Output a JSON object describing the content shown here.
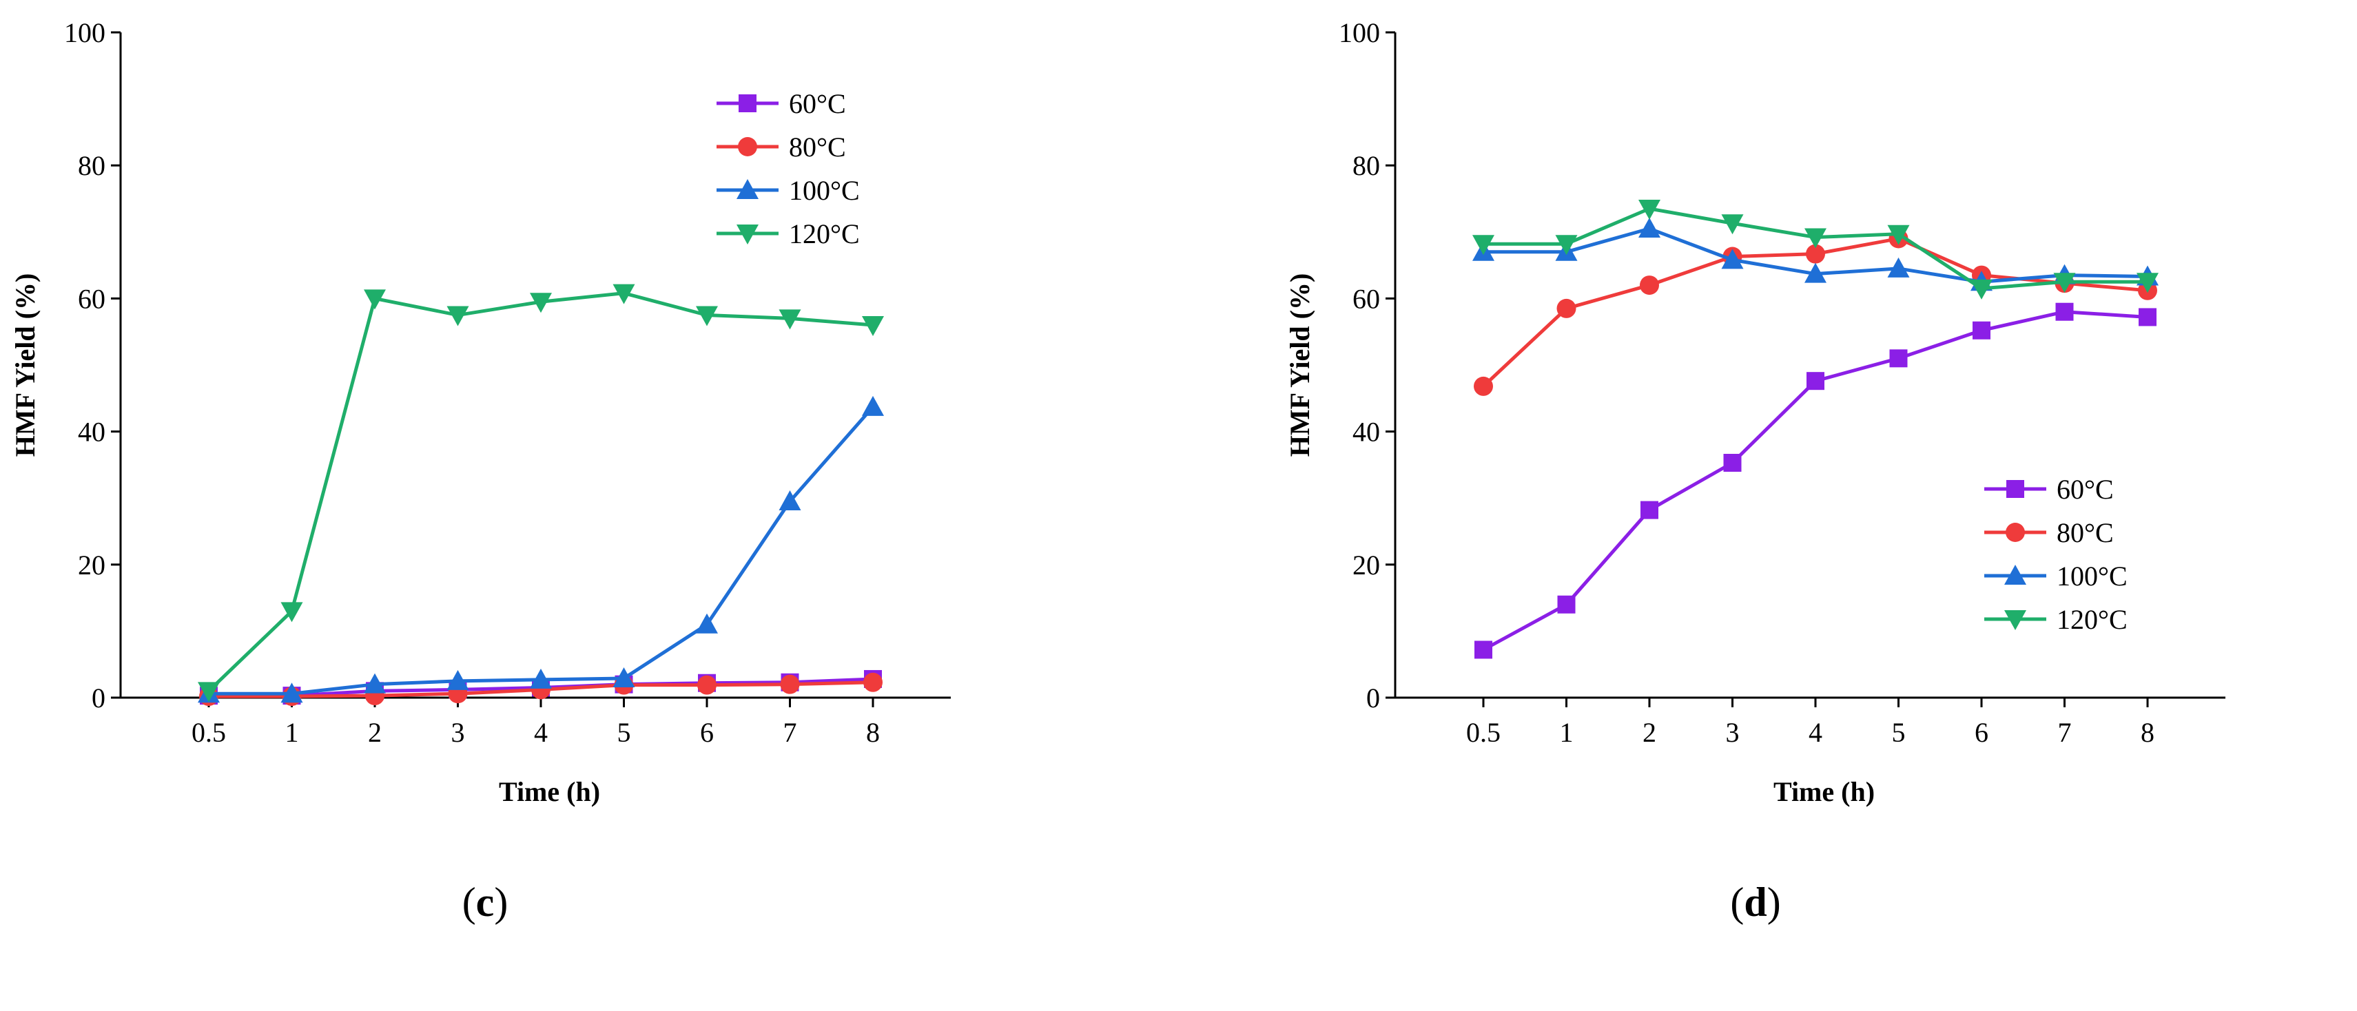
{
  "chart_data": [
    {
      "type": "line",
      "panel": "c",
      "xlabel": "Time (h)",
      "ylabel": "HMF Yield (%)",
      "categories": [
        "0.5",
        "1",
        "2",
        "3",
        "4",
        "5",
        "6",
        "7",
        "8"
      ],
      "ylim": [
        0,
        100
      ],
      "yticks": [
        0,
        20,
        40,
        60,
        80,
        100
      ],
      "legend": "top-right",
      "series": [
        {
          "name": "60°C",
          "color": "#8b1fe6",
          "marker": "square",
          "values": [
            0.3,
            0.3,
            1.0,
            1.2,
            1.5,
            2.0,
            2.2,
            2.3,
            2.8
          ]
        },
        {
          "name": "80°C",
          "color": "#ef3b3b",
          "marker": "circle",
          "values": [
            0.2,
            0.2,
            0.3,
            0.6,
            1.2,
            1.9,
            1.9,
            2.0,
            2.3
          ]
        },
        {
          "name": "100°C",
          "color": "#1f6fd6",
          "marker": "triangle-up",
          "values": [
            0.6,
            0.6,
            2.0,
            2.5,
            2.7,
            2.9,
            11.0,
            29.5,
            43.7
          ]
        },
        {
          "name": "120°C",
          "color": "#1fae6a",
          "marker": "triangle-down",
          "values": [
            1.0,
            13.0,
            60.0,
            57.5,
            59.5,
            60.8,
            57.5,
            57.0,
            56.0
          ]
        }
      ]
    },
    {
      "type": "line",
      "panel": "d",
      "xlabel": "Time (h)",
      "ylabel": "HMF Yield (%)",
      "categories": [
        "0.5",
        "1",
        "2",
        "3",
        "4",
        "5",
        "6",
        "7",
        "8"
      ],
      "ylim": [
        0,
        100
      ],
      "yticks": [
        0,
        20,
        40,
        60,
        80,
        100
      ],
      "legend": "bottom-right",
      "series": [
        {
          "name": "60°C",
          "color": "#8b1fe6",
          "marker": "square",
          "values": [
            7.2,
            14.0,
            28.2,
            35.3,
            47.6,
            51.0,
            55.2,
            58.0,
            57.2
          ]
        },
        {
          "name": "80°C",
          "color": "#ef3b3b",
          "marker": "circle",
          "values": [
            46.8,
            58.5,
            62.0,
            66.3,
            66.7,
            69.0,
            63.5,
            62.3,
            61.2
          ]
        },
        {
          "name": "100°C",
          "color": "#1f6fd6",
          "marker": "triangle-up",
          "values": [
            67.0,
            67.0,
            70.5,
            65.8,
            63.7,
            64.5,
            62.5,
            63.5,
            63.3
          ]
        },
        {
          "name": "120°C",
          "color": "#1fae6a",
          "marker": "triangle-down",
          "values": [
            68.2,
            68.2,
            73.5,
            71.3,
            69.2,
            69.7,
            61.5,
            62.5,
            62.5
          ]
        }
      ]
    }
  ],
  "labels": {
    "c": {
      "open": "(",
      "letter": "c",
      "close": ")"
    },
    "d": {
      "open": "(",
      "letter": "d",
      "close": ")"
    }
  }
}
